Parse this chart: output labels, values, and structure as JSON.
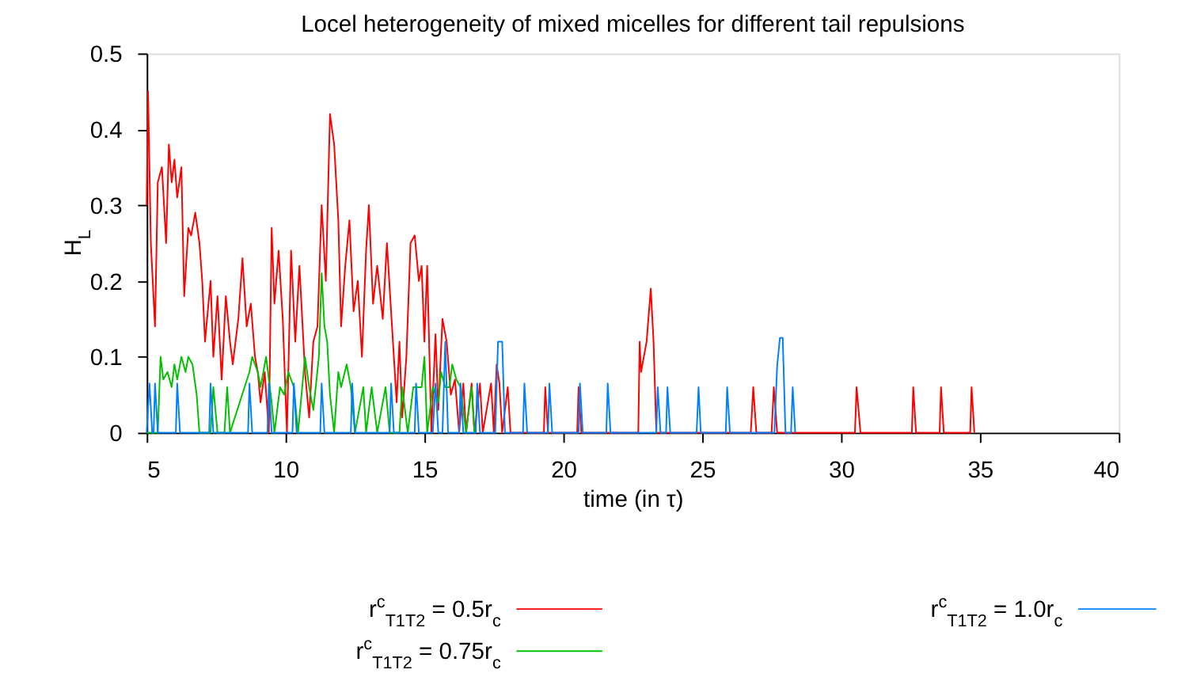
{
  "chart_data": {
    "type": "line",
    "title": "Locel heterogeneity of mixed micelles for different tail repulsions",
    "xlabel": "time (in τ)",
    "ylabel": "H$_{L}$",
    "xlim": [
      5,
      40
    ],
    "xticks": [
      5,
      10,
      15,
      20,
      25,
      30,
      35,
      40
    ],
    "ylim": [
      0,
      0.5
    ],
    "yticks": [
      0,
      0.1,
      0.2,
      0.3,
      0.4,
      0.5
    ],
    "grid": false,
    "legend": "bottom",
    "marker": "none",
    "line_style": "solid",
    "series": [
      {
        "name": "r$^{c}$$_{T1T2}$ = 0.5r$_{c}$",
        "color": "#ff0000",
        "x": [
          5.0,
          5.05,
          5.15,
          5.3,
          5.4,
          5.55,
          5.7,
          5.8,
          5.9,
          6.0,
          6.1,
          6.25,
          6.35,
          6.5,
          6.6,
          6.75,
          6.9,
          7.0,
          7.1,
          7.3,
          7.4,
          7.55,
          7.7,
          7.85,
          8.0,
          8.1,
          8.3,
          8.45,
          8.6,
          8.75,
          8.9,
          9.0,
          9.1,
          9.25,
          9.4,
          9.5,
          9.6,
          9.75,
          9.9,
          10.05,
          10.2,
          10.35,
          10.5,
          10.7,
          10.85,
          11.0,
          11.15,
          11.3,
          11.45,
          11.6,
          11.75,
          11.9,
          12.0,
          12.15,
          12.3,
          12.45,
          12.6,
          12.75,
          12.9,
          13.0,
          13.15,
          13.3,
          13.5,
          13.65,
          13.8,
          14.0,
          14.1,
          14.2,
          14.35,
          14.5,
          14.65,
          14.8,
          14.9,
          15.0,
          15.1,
          15.25,
          15.4,
          15.5,
          15.65,
          15.8,
          15.95,
          16.1,
          16.25,
          16.4,
          16.5,
          16.7,
          16.8,
          17.0,
          17.1,
          17.4,
          17.5,
          17.6,
          17.7,
          17.8,
          18.0,
          18.1,
          19.3,
          19.35,
          19.45,
          20.5,
          20.55,
          20.65,
          22.7,
          22.75,
          22.8,
          23.0,
          23.15,
          23.25,
          23.35,
          26.75,
          26.84,
          26.95,
          27.5,
          27.58,
          27.7,
          30.5,
          30.56,
          30.7,
          32.55,
          32.6,
          32.7,
          33.55,
          33.6,
          33.7,
          34.65,
          34.7,
          34.8
        ],
        "values": [
          0.3,
          0.45,
          0.25,
          0.14,
          0.33,
          0.35,
          0.25,
          0.38,
          0.33,
          0.36,
          0.31,
          0.35,
          0.18,
          0.27,
          0.26,
          0.29,
          0.25,
          0.2,
          0.12,
          0.2,
          0.1,
          0.18,
          0.07,
          0.18,
          0.12,
          0.09,
          0.15,
          0.23,
          0.14,
          0.17,
          0.1,
          0.08,
          0.04,
          0.08,
          0.0,
          0.27,
          0.17,
          0.24,
          0.15,
          0.0,
          0.24,
          0.12,
          0.22,
          0.08,
          0.02,
          0.12,
          0.14,
          0.3,
          0.2,
          0.42,
          0.38,
          0.28,
          0.14,
          0.22,
          0.28,
          0.16,
          0.2,
          0.1,
          0.24,
          0.3,
          0.17,
          0.22,
          0.15,
          0.25,
          0.16,
          0.04,
          0.12,
          0.02,
          0.1,
          0.25,
          0.26,
          0.2,
          0.22,
          0.12,
          0.22,
          0.0,
          0.13,
          0.03,
          0.15,
          0.12,
          0.05,
          0.07,
          0.0,
          0.065,
          0.0,
          0.065,
          0.0,
          0.065,
          0.0,
          0.065,
          0.0,
          0.09,
          0.065,
          0.0,
          0.06,
          0.0,
          0.0,
          0.06,
          0.0,
          0.0,
          0.06,
          0.0,
          0.0,
          0.12,
          0.08,
          0.12,
          0.19,
          0.12,
          0.0,
          0.0,
          0.06,
          0.0,
          0.0,
          0.06,
          0.0,
          0.0,
          0.06,
          0.0,
          0.0,
          0.06,
          0.0,
          0.0,
          0.06,
          0.0,
          0.0,
          0.06,
          0.0
        ]
      },
      {
        "name": "r$^{c}$$_{T1T2}$ = 0.75r$_{c}$",
        "color": "#00c000",
        "x": [
          5.0,
          5.4,
          5.5,
          5.6,
          5.75,
          5.9,
          6.0,
          6.1,
          6.25,
          6.4,
          6.5,
          6.65,
          6.8,
          6.9,
          7.3,
          7.4,
          7.55,
          7.8,
          7.9,
          8.0,
          8.7,
          8.8,
          9.0,
          9.1,
          9.3,
          9.5,
          9.6,
          9.8,
          9.95,
          10.1,
          10.3,
          10.45,
          10.7,
          10.85,
          11.0,
          11.2,
          11.3,
          11.4,
          11.5,
          11.6,
          11.75,
          11.9,
          12.0,
          12.2,
          12.35,
          12.5,
          12.8,
          12.9,
          13.1,
          13.3,
          13.6,
          13.75,
          14.1,
          14.2,
          14.4,
          14.6,
          14.9,
          15.0,
          15.1,
          15.3,
          15.5,
          15.6,
          15.75,
          15.9,
          16.0,
          16.15,
          16.3,
          16.5,
          16.7,
          16.8
        ],
        "values": [
          0.0,
          0.0,
          0.1,
          0.07,
          0.08,
          0.06,
          0.09,
          0.07,
          0.1,
          0.08,
          0.1,
          0.09,
          0.05,
          0.0,
          0.0,
          0.06,
          0.0,
          0.0,
          0.06,
          0.0,
          0.08,
          0.1,
          0.08,
          0.06,
          0.1,
          0.04,
          0.0,
          0.06,
          0.05,
          0.08,
          0.06,
          0.0,
          0.1,
          0.06,
          0.03,
          0.1,
          0.21,
          0.14,
          0.12,
          0.05,
          0.0,
          0.08,
          0.06,
          0.09,
          0.06,
          0.0,
          0.06,
          0.0,
          0.06,
          0.0,
          0.06,
          0.0,
          0.0,
          0.06,
          0.0,
          0.06,
          0.06,
          0.1,
          0.0,
          0.06,
          0.04,
          0.08,
          0.06,
          0.06,
          0.09,
          0.07,
          0.06,
          0.0,
          0.06,
          0.0
        ]
      },
      {
        "name": "r$^{c}$$_{T1T2}$ = 1.0r$_{c}$",
        "color": "#0080ff",
        "x": [
          5.0,
          5.1,
          5.2,
          5.25,
          5.3,
          5.4,
          6.05,
          6.1,
          6.2,
          7.25,
          7.3,
          7.4,
          8.65,
          8.7,
          8.8,
          9.35,
          9.4,
          9.5,
          10.25,
          10.3,
          10.4,
          11.25,
          11.3,
          11.4,
          12.35,
          12.4,
          12.5,
          13.75,
          13.8,
          13.9,
          14.65,
          14.7,
          14.8,
          15.3,
          15.4,
          15.5,
          15.65,
          15.75,
          15.85,
          16.25,
          16.3,
          16.4,
          16.85,
          16.9,
          17.0,
          17.55,
          17.65,
          17.8,
          17.9,
          18.55,
          18.6,
          18.7,
          19.45,
          19.5,
          19.6,
          20.55,
          20.6,
          20.7,
          21.55,
          21.6,
          21.7,
          23.35,
          23.4,
          23.5,
          23.7,
          23.75,
          23.85,
          24.8,
          24.87,
          24.95,
          25.85,
          25.9,
          26.0,
          27.6,
          27.7,
          27.8,
          27.9,
          28.0,
          28.2,
          28.26,
          28.35
        ],
        "values": [
          0.0,
          0.065,
          0.0,
          0.0,
          0.065,
          0.0,
          0.0,
          0.065,
          0.0,
          0.0,
          0.065,
          0.0,
          0.0,
          0.065,
          0.0,
          0.0,
          0.065,
          0.0,
          0.0,
          0.065,
          0.0,
          0.0,
          0.065,
          0.0,
          0.0,
          0.065,
          0.0,
          0.0,
          0.065,
          0.0,
          0.0,
          0.065,
          0.0,
          0.0,
          0.065,
          0.0,
          0.0,
          0.12,
          0.0,
          0.0,
          0.065,
          0.0,
          0.0,
          0.065,
          0.0,
          0.0,
          0.12,
          0.12,
          0.0,
          0.0,
          0.065,
          0.0,
          0.0,
          0.065,
          0.0,
          0.0,
          0.065,
          0.0,
          0.0,
          0.065,
          0.0,
          0.0,
          0.06,
          0.0,
          0.0,
          0.06,
          0.0,
          0.0,
          0.06,
          0.0,
          0.0,
          0.06,
          0.0,
          0.0,
          0.088,
          0.125,
          0.125,
          0.0,
          0.0,
          0.06,
          0.0
        ]
      }
    ]
  }
}
